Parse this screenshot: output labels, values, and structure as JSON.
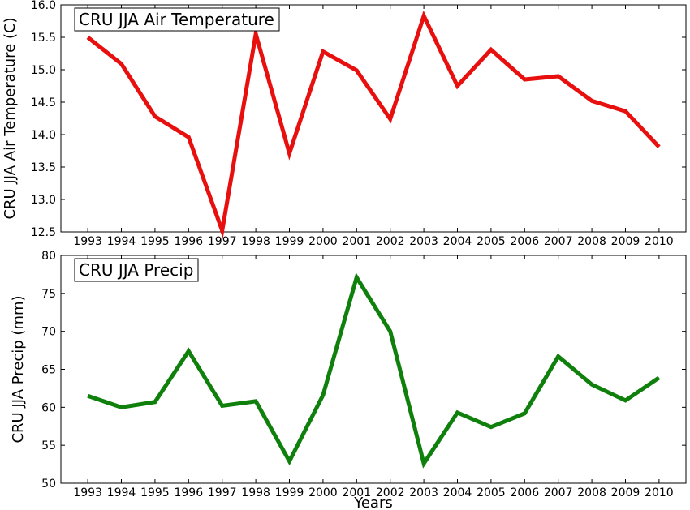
{
  "chart_data": [
    {
      "type": "line",
      "title": "CRU JJA Air Temperature",
      "xlabel": "",
      "ylabel": "CRU JJA Air Temperature (C)",
      "x": [
        1993,
        1994,
        1995,
        1996,
        1997,
        1998,
        1999,
        2000,
        2001,
        2002,
        2003,
        2004,
        2005,
        2006,
        2007,
        2008,
        2009,
        2010
      ],
      "xlim": [
        1992.2,
        2010.8
      ],
      "ylim": [
        12.5,
        16.0
      ],
      "yticks": [
        "12.5",
        "13.0",
        "13.5",
        "14.0",
        "14.5",
        "15.0",
        "15.5",
        "16.0"
      ],
      "grid": false,
      "series": [
        {
          "color": "#e8100e",
          "values": [
            15.5,
            15.09,
            14.28,
            13.96,
            12.52,
            15.55,
            13.71,
            15.28,
            14.99,
            14.24,
            15.83,
            14.75,
            15.31,
            14.85,
            14.9,
            14.52,
            14.36,
            13.81
          ]
        }
      ]
    },
    {
      "type": "line",
      "title": "CRU JJA Precip",
      "xlabel": "Years",
      "ylabel": "CRU JJA Precip (mm)",
      "x": [
        1993,
        1994,
        1995,
        1996,
        1997,
        1998,
        1999,
        2000,
        2001,
        2002,
        2003,
        2004,
        2005,
        2006,
        2007,
        2008,
        2009,
        2010
      ],
      "xlim": [
        1992.2,
        2010.8
      ],
      "ylim": [
        50,
        80
      ],
      "yticks": [
        "50",
        "55",
        "60",
        "65",
        "70",
        "75",
        "80"
      ],
      "grid": false,
      "series": [
        {
          "color": "#10800d",
          "values": [
            61.5,
            60.0,
            60.7,
            67.4,
            60.2,
            60.8,
            52.9,
            61.6,
            77.1,
            70.0,
            52.6,
            59.3,
            57.4,
            59.2,
            66.7,
            63.0,
            60.9,
            63.9
          ]
        }
      ]
    }
  ]
}
